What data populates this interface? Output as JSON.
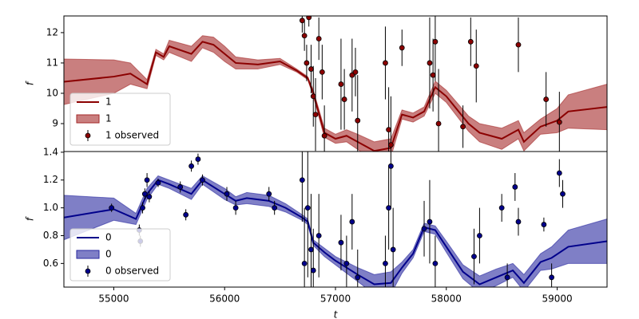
{
  "chart_data": [
    {
      "type": "line",
      "ylabel": "f",
      "xlim": [
        54550,
        59450
      ],
      "ylim": [
        8.08,
        12.55
      ],
      "yticks": [
        9,
        10,
        11,
        12
      ],
      "legend": "lower left",
      "series": [
        {
          "type": "line",
          "name": "1",
          "color": "#8b0000",
          "x": [
            54550,
            55000,
            55150,
            55300,
            55380,
            55450,
            55500,
            55700,
            55800,
            55900,
            56000,
            56100,
            56300,
            56500,
            56650,
            56750,
            56800,
            56900,
            57000,
            57100,
            57200,
            57350,
            57500,
            57600,
            57700,
            57800,
            57900,
            58000,
            58200,
            58300,
            58500,
            58650,
            58700,
            58850,
            59000,
            59100,
            59450
          ],
          "values": [
            10.38,
            10.55,
            10.65,
            10.3,
            11.35,
            11.2,
            11.55,
            11.3,
            11.7,
            11.6,
            11.3,
            11.0,
            10.95,
            11.05,
            10.75,
            10.5,
            10.0,
            8.7,
            8.5,
            8.6,
            8.4,
            8.1,
            8.2,
            9.3,
            9.2,
            9.4,
            10.2,
            9.9,
            9.0,
            8.7,
            8.5,
            8.8,
            8.4,
            8.9,
            9.1,
            9.4,
            9.55
          ]
        },
        {
          "type": "band",
          "name": "1",
          "color": "#a52a2a",
          "alpha": 0.6,
          "x": [
            54550,
            55000,
            55150,
            55300,
            55380,
            55450,
            55500,
            55700,
            55800,
            55900,
            56000,
            56100,
            56300,
            56500,
            56650,
            56750,
            56800,
            56900,
            57000,
            57100,
            57200,
            57350,
            57500,
            57600,
            57700,
            57800,
            57900,
            58000,
            58200,
            58300,
            58500,
            58650,
            58700,
            58850,
            59000,
            59100,
            59450
          ],
          "lower": [
            9.63,
            10.0,
            10.3,
            10.15,
            11.25,
            11.1,
            11.35,
            11.05,
            11.5,
            11.35,
            11.05,
            10.8,
            10.8,
            10.95,
            10.7,
            10.45,
            9.9,
            8.55,
            8.35,
            8.4,
            8.15,
            7.8,
            7.9,
            9.15,
            9.05,
            9.25,
            10.0,
            9.7,
            8.75,
            8.4,
            8.15,
            8.5,
            8.1,
            8.65,
            8.7,
            8.85,
            8.8
          ],
          "upper": [
            11.13,
            11.1,
            11.0,
            10.45,
            11.45,
            11.3,
            11.75,
            11.55,
            11.9,
            11.85,
            11.55,
            11.2,
            11.1,
            11.15,
            10.8,
            10.55,
            10.1,
            8.85,
            8.65,
            8.8,
            8.65,
            8.4,
            8.5,
            9.45,
            9.35,
            9.55,
            10.4,
            10.1,
            9.25,
            9.0,
            8.85,
            9.1,
            8.7,
            9.15,
            9.5,
            9.95,
            10.3
          ]
        },
        {
          "type": "errorbar",
          "name": "1 observed",
          "color": "#8b0000",
          "x": [
            56700,
            56720,
            56740,
            56760,
            56780,
            56800,
            56820,
            56850,
            56880,
            56900,
            57050,
            57080,
            57150,
            57180,
            57200,
            57450,
            57480,
            57500,
            57600,
            57850,
            57880,
            57900,
            57930,
            58150,
            58220,
            58270,
            58650,
            58900,
            59020
          ],
          "values": [
            12.4,
            11.9,
            11.0,
            12.5,
            10.8,
            9.9,
            9.3,
            11.8,
            10.7,
            8.6,
            10.3,
            9.8,
            10.6,
            10.7,
            9.1,
            11.0,
            8.8,
            8.3,
            11.5,
            11.0,
            10.6,
            11.7,
            9.0,
            8.9,
            11.7,
            10.9,
            11.6,
            9.8,
            9.05
          ],
          "errors": [
            0.4,
            0.5,
            0.6,
            0.3,
            0.8,
            1.0,
            1.2,
            0.7,
            0.9,
            1.0,
            1.5,
            1.0,
            1.2,
            0.8,
            1.5,
            1.2,
            1.4,
            1.6,
            0.6,
            1.5,
            1.2,
            1.3,
            1.8,
            0.7,
            0.8,
            1.2,
            0.9,
            0.9,
            1.0
          ]
        }
      ]
    },
    {
      "type": "line",
      "ylabel": "f",
      "xlabel": "t",
      "xlim": [
        54550,
        59450
      ],
      "xticks": [
        55000,
        56000,
        57000,
        58000,
        59000
      ],
      "ylim": [
        0.43,
        1.405
      ],
      "yticks": [
        0.6,
        0.8,
        {
          "value": 1,
          "label": "1.0"
        },
        1.2,
        1.4
      ],
      "legend": "lower left",
      "series": [
        {
          "type": "line",
          "name": "0",
          "color": "#00008b",
          "x": [
            54550,
            55000,
            55200,
            55300,
            55400,
            55500,
            55700,
            55800,
            56000,
            56100,
            56200,
            56400,
            56550,
            56700,
            56750,
            56800,
            56900,
            57000,
            57100,
            57200,
            57350,
            57500,
            57600,
            57700,
            57800,
            57900,
            58000,
            58150,
            58300,
            58450,
            58600,
            58700,
            58850,
            58950,
            59100,
            59450
          ],
          "values": [
            0.93,
            0.99,
            0.92,
            1.1,
            1.2,
            1.17,
            1.1,
            1.2,
            1.1,
            1.05,
            1.07,
            1.05,
            1.0,
            0.93,
            0.9,
            0.75,
            0.68,
            0.62,
            0.57,
            0.52,
            0.45,
            0.46,
            0.57,
            0.67,
            0.86,
            0.84,
            0.72,
            0.54,
            0.45,
            0.5,
            0.55,
            0.46,
            0.61,
            0.64,
            0.72,
            0.76
          ]
        },
        {
          "type": "band",
          "name": "0",
          "color": "#2a2aa0",
          "alpha": 0.6,
          "x": [
            54550,
            55000,
            55200,
            55300,
            55400,
            55500,
            55700,
            55800,
            56000,
            56100,
            56200,
            56400,
            56550,
            56700,
            56750,
            56800,
            56900,
            57000,
            57100,
            57200,
            57350,
            57500,
            57600,
            57700,
            57800,
            57900,
            58000,
            58150,
            58300,
            58450,
            58600,
            58700,
            58850,
            58950,
            59100,
            59450
          ],
          "lower": [
            0.77,
            0.91,
            0.88,
            1.06,
            1.17,
            1.14,
            1.06,
            1.17,
            1.06,
            1.02,
            1.03,
            1.01,
            0.97,
            0.91,
            0.88,
            0.73,
            0.65,
            0.59,
            0.53,
            0.47,
            0.38,
            0.38,
            0.53,
            0.64,
            0.83,
            0.81,
            0.68,
            0.49,
            0.39,
            0.44,
            0.5,
            0.4,
            0.55,
            0.56,
            0.6,
            0.6
          ],
          "upper": [
            1.09,
            1.07,
            0.96,
            1.14,
            1.23,
            1.2,
            1.14,
            1.23,
            1.14,
            1.08,
            1.11,
            1.09,
            1.03,
            0.95,
            0.92,
            0.77,
            0.71,
            0.65,
            0.61,
            0.57,
            0.52,
            0.54,
            0.61,
            0.7,
            0.89,
            0.87,
            0.76,
            0.59,
            0.51,
            0.56,
            0.6,
            0.52,
            0.67,
            0.72,
            0.84,
            0.92
          ]
        },
        {
          "type": "errorbar",
          "name": "0 observed",
          "color": "#00008b",
          "x": [
            54980,
            55230,
            55240,
            55260,
            55280,
            55300,
            55320,
            55400,
            55600,
            55650,
            55700,
            55760,
            55800,
            56020,
            56100,
            56400,
            56450,
            56700,
            56720,
            56750,
            56780,
            56800,
            56850,
            57050,
            57100,
            57150,
            57200,
            57450,
            57480,
            57500,
            57520,
            57800,
            57850,
            57900,
            58250,
            58300,
            58500,
            58550,
            58620,
            58650,
            58880,
            58950,
            59020,
            59050
          ],
          "values": [
            1.0,
            0.84,
            0.76,
            1.0,
            1.1,
            1.2,
            1.08,
            1.18,
            1.15,
            0.95,
            1.3,
            1.35,
            1.2,
            1.1,
            1.0,
            1.1,
            1.0,
            1.2,
            0.6,
            1.0,
            0.7,
            0.55,
            0.8,
            0.75,
            0.6,
            0.9,
            0.5,
            0.6,
            1.0,
            1.3,
            0.7,
            0.85,
            0.9,
            0.6,
            0.65,
            0.8,
            1.0,
            0.5,
            1.15,
            0.9,
            0.88,
            0.5,
            1.25,
            1.1
          ],
          "errors": [
            0.03,
            0.04,
            0.04,
            0.04,
            0.04,
            0.05,
            0.04,
            0.03,
            0.04,
            0.04,
            0.04,
            0.04,
            0.04,
            0.05,
            0.05,
            0.05,
            0.05,
            0.3,
            0.4,
            0.5,
            0.4,
            0.3,
            0.3,
            0.2,
            0.2,
            0.2,
            0.2,
            0.2,
            0.3,
            0.3,
            0.3,
            0.2,
            0.3,
            0.2,
            0.2,
            0.2,
            0.1,
            0.1,
            0.1,
            0.1,
            0.05,
            0.1,
            0.1,
            0.1
          ]
        }
      ]
    }
  ]
}
